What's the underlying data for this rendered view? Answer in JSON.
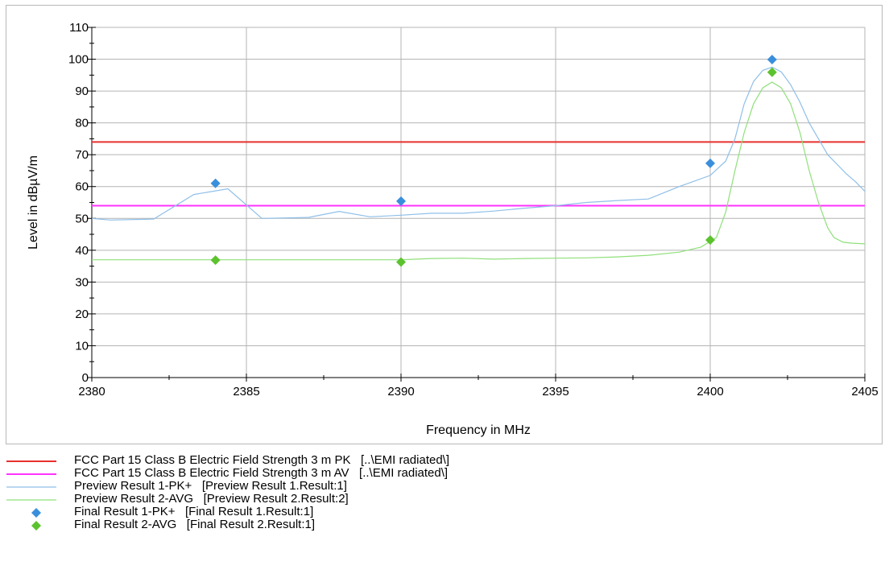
{
  "chart_data": {
    "type": "line",
    "xlabel": "Frequency in MHz",
    "ylabel": "Level in dBµV/m",
    "xlim": [
      2380,
      2405
    ],
    "ylim": [
      0,
      110
    ],
    "x_ticks": [
      "2380",
      "2385",
      "2390",
      "2395",
      "2400",
      "2405"
    ],
    "y_ticks": [
      "0",
      "10",
      "20",
      "30",
      "40",
      "50",
      "60",
      "70",
      "80",
      "90",
      "100",
      "110"
    ],
    "grid": true,
    "legend_position": "bottom",
    "series": [
      {
        "name": "FCC Part 15 Class B Electric Field Strength 3 m PK",
        "source": "[..\\EMI radiated\\]",
        "kind": "limit",
        "color": "#e8302e",
        "x": [
          2380,
          2405
        ],
        "y": [
          74,
          74
        ]
      },
      {
        "name": "FCC Part 15 Class B Electric Field Strength 3 m AV",
        "source": "[..\\EMI radiated\\]",
        "kind": "limit",
        "color": "#ff33ff",
        "x": [
          2380,
          2405
        ],
        "y": [
          54,
          54
        ]
      },
      {
        "name": "Preview Result 1-PK+",
        "source": "[Preview Result 1.Result:1]",
        "kind": "line",
        "color": "#8fbfe8",
        "x": [
          2380,
          2380.6,
          2382,
          2383.3,
          2384.4,
          2385.5,
          2387,
          2388,
          2389,
          2390,
          2391,
          2392,
          2393,
          2394,
          2395,
          2396,
          2397,
          2398,
          2399,
          2400,
          2400.5,
          2400.8,
          2401.1,
          2401.4,
          2401.7,
          2402,
          2402.3,
          2402.6,
          2402.9,
          2403.2,
          2403.5,
          2403.8,
          2404.1,
          2404.4,
          2404.7,
          2405
        ],
        "y": [
          50,
          49.5,
          49.8,
          57.5,
          59.3,
          50,
          50.3,
          52.2,
          50.5,
          51,
          51.6,
          51.6,
          52.3,
          53.2,
          54,
          55,
          55.6,
          56.1,
          60,
          63.5,
          68,
          75,
          86,
          93,
          96.5,
          97.5,
          96,
          92,
          86.5,
          80,
          75,
          70,
          67,
          64,
          61.5,
          58.5
        ]
      },
      {
        "name": "Preview Result 2-AVG",
        "source": "[Preview Result 2.Result:2]",
        "kind": "line",
        "color": "#8fe07a",
        "x": [
          2380,
          2382,
          2384,
          2386,
          2388,
          2390,
          2391,
          2392,
          2393,
          2394,
          2395,
          2396,
          2397,
          2398,
          2399,
          2399.7,
          2400.2,
          2400.5,
          2400.8,
          2401.1,
          2401.4,
          2401.7,
          2402,
          2402.3,
          2402.6,
          2402.9,
          2403.2,
          2403.5,
          2403.8,
          2404,
          2404.3,
          2404.6,
          2405
        ],
        "y": [
          37,
          37,
          37,
          37,
          37,
          37,
          37.4,
          37.5,
          37.2,
          37.4,
          37.5,
          37.6,
          37.9,
          38.4,
          39.4,
          41,
          44,
          52,
          65,
          77,
          86,
          91,
          92.8,
          91,
          86,
          77,
          65,
          55,
          47,
          44,
          42.5,
          42.2,
          42
        ]
      },
      {
        "name": "Final Result 1-PK+",
        "source": "[Final Result 1.Result:1]",
        "kind": "points",
        "color": "#3a8fdc",
        "x": [
          2384,
          2390,
          2400,
          2402
        ],
        "y": [
          61,
          55.4,
          67.3,
          99.9
        ]
      },
      {
        "name": "Final Result 2-AVG",
        "source": "[Final Result 2.Result:1]",
        "kind": "points",
        "color": "#5cc22e",
        "x": [
          2384,
          2390,
          2400,
          2402
        ],
        "y": [
          36.9,
          36.3,
          43.2,
          95.9
        ]
      }
    ]
  }
}
